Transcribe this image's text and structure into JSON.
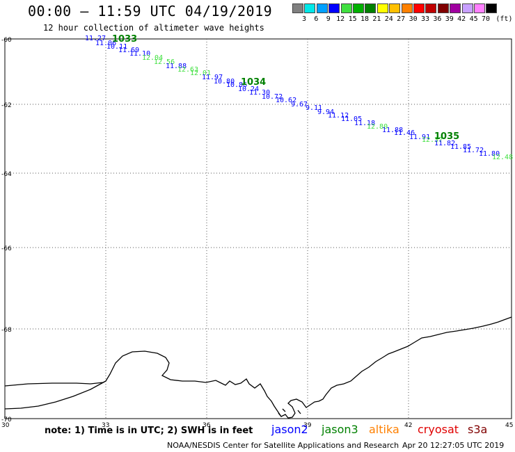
{
  "header": {
    "title": "00:00 — 11:59 UTC 04/19/2019",
    "subtitle": "12 hour collection of altimeter wave heights"
  },
  "legend": {
    "unit": "(ft)",
    "bins": [
      {
        "label": "3",
        "color": "#808080"
      },
      {
        "label": "6",
        "color": "#00e8e8"
      },
      {
        "label": "9",
        "color": "#00a0ff"
      },
      {
        "label": "12",
        "color": "#0000ff"
      },
      {
        "label": "15",
        "color": "#40e040"
      },
      {
        "label": "18",
        "color": "#00b000"
      },
      {
        "label": "21",
        "color": "#008000"
      },
      {
        "label": "24",
        "color": "#ffff00"
      },
      {
        "label": "27",
        "color": "#ffc000"
      },
      {
        "label": "30",
        "color": "#ff8000"
      },
      {
        "label": "33",
        "color": "#ff0000"
      },
      {
        "label": "36",
        "color": "#c00000"
      },
      {
        "label": "39",
        "color": "#800000"
      },
      {
        "label": "42",
        "color": "#a000a0"
      },
      {
        "label": "45",
        "color": "#c8a0ff"
      },
      {
        "label": "70",
        "color": "#ff80ff"
      },
      {
        "label": "",
        "color": "#000000"
      }
    ]
  },
  "map": {
    "lat_range": [
      -70,
      -60
    ],
    "lon_range": [
      30,
      45
    ],
    "lat_labels": [
      "-60",
      "-62",
      "-64",
      "-66",
      "-68",
      "-70"
    ],
    "lon_labels": [
      "30",
      "33",
      "36",
      "39",
      "42",
      "45"
    ],
    "track_labels": [
      {
        "text": "11.27",
        "color": "#0000ff"
      },
      {
        "text": "11.06",
        "color": "#0000ff"
      },
      {
        "text": "10.11",
        "color": "#0000ff"
      },
      {
        "text": "11.69",
        "color": "#0000ff"
      },
      {
        "text": "11.10",
        "color": "#0000ff"
      },
      {
        "text": "12.04",
        "color": "#40e040"
      },
      {
        "text": "12.56",
        "color": "#40e040"
      },
      {
        "text": "11.88",
        "color": "#0000ff"
      },
      {
        "text": "12.63",
        "color": "#40e040"
      },
      {
        "text": "12.01",
        "color": "#40e040"
      },
      {
        "text": "11.97",
        "color": "#0000ff"
      },
      {
        "text": "10.80",
        "color": "#0000ff"
      },
      {
        "text": "10.86",
        "color": "#0000ff"
      },
      {
        "text": "10.24",
        "color": "#0000ff"
      },
      {
        "text": "11.30",
        "color": "#0000ff"
      },
      {
        "text": "10.72",
        "color": "#0000ff"
      },
      {
        "text": "10.62",
        "color": "#0000ff"
      },
      {
        "text": "9.67",
        "color": "#0000ff"
      },
      {
        "text": "9.11",
        "color": "#0000ff"
      },
      {
        "text": "9.94",
        "color": "#0000ff"
      },
      {
        "text": "11.12",
        "color": "#0000ff"
      },
      {
        "text": "11.05",
        "color": "#0000ff"
      },
      {
        "text": "11.18",
        "color": "#0000ff"
      },
      {
        "text": "12.80",
        "color": "#40e040"
      },
      {
        "text": "11.88",
        "color": "#0000ff"
      },
      {
        "text": "11.46",
        "color": "#0000ff"
      },
      {
        "text": "11.91",
        "color": "#0000ff"
      },
      {
        "text": "12.37",
        "color": "#40e040"
      },
      {
        "text": "11.82",
        "color": "#0000ff"
      },
      {
        "text": "11.85",
        "color": "#0000ff"
      },
      {
        "text": "11.72",
        "color": "#0000ff"
      },
      {
        "text": "11.80",
        "color": "#0000ff"
      },
      {
        "text": "12.48",
        "color": "#40e040"
      }
    ],
    "time_labels": [
      {
        "text": "1033",
        "color": "#008000"
      },
      {
        "text": "1034",
        "color": "#008000"
      },
      {
        "text": "1035",
        "color": "#008000"
      }
    ]
  },
  "footer": {
    "note": "note: 1) Time is in UTC; 2) SWH is in feet",
    "satellites": [
      {
        "name": "jason2",
        "color": "#0000ff"
      },
      {
        "name": "jason3",
        "color": "#008000"
      },
      {
        "name": "altika",
        "color": "#ff8000"
      },
      {
        "name": "cryosat",
        "color": "#e00000"
      },
      {
        "name": "s3a",
        "color": "#800000"
      }
    ],
    "credit": "NOAA/NESDIS Center for Satellite Applications and Research",
    "generated": "Apr 20 12:27:05 UTC 2019"
  }
}
